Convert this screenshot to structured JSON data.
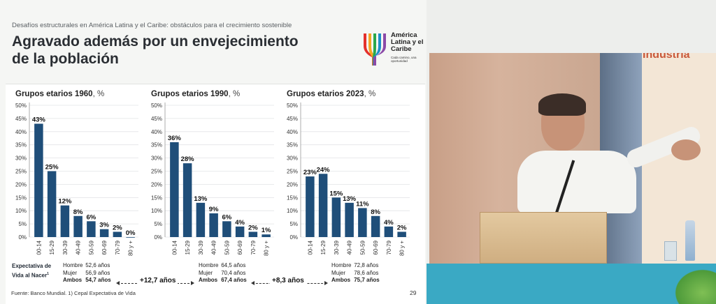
{
  "slide": {
    "supertitle": "Desafíos estructurales en América Latina y el Caribe: obstáculos para el crecimiento sostenible",
    "title": "Agravado además por un envejecimiento de la población",
    "logo": {
      "name": "América Latina y el Caribe",
      "tagline": "Cada camino, una oportunidad",
      "colors": [
        "#e4302b",
        "#f6a623",
        "#2ba84a",
        "#1d8fc9",
        "#8b4aa8"
      ]
    },
    "bar_color": "#1f4e79",
    "life_expectancy_label": "Expectativa de Vida al Nacer",
    "life_expectancy_footnote": "1",
    "stats": [
      {
        "hombre_label": "Hombre",
        "hombre": "52,6 años",
        "mujer_label": "Mujer",
        "mujer": "56,9 años",
        "ambos_label": "Ambos",
        "ambos": "54,7 años"
      },
      {
        "hombre_label": "Hombre",
        "hombre": "64,5 años",
        "mujer_label": "Mujer",
        "mujer": "70,4 años",
        "ambos_label": "Ambos",
        "ambos": "67,4 años"
      },
      {
        "hombre_label": "Hombre",
        "hombre": "72,8 años",
        "mujer_label": "Mujer",
        "mujer": "78,6 años",
        "ambos_label": "Ambos",
        "ambos": "75,7 años"
      }
    ],
    "diffs": [
      "+12,7 años",
      "+8,3 años"
    ],
    "source": "Fuente: Banco Mundial. 1) Cepal Expectativa de Vida",
    "page_number": "29"
  },
  "chart_data": [
    {
      "type": "bar",
      "title": "Grupos etarios 1960",
      "unit": ", %",
      "categories": [
        "00-14",
        "15-29",
        "30-39",
        "40-49",
        "50-59",
        "60-69",
        "70-79",
        "80 y +"
      ],
      "values": [
        43,
        25,
        12,
        8,
        6,
        3,
        2,
        0
      ],
      "value_labels": [
        "43%",
        "25%",
        "12%",
        "8%",
        "6%",
        "3%",
        "2%",
        "0%"
      ],
      "yticks": [
        "0%",
        "5%",
        "10%",
        "15%",
        "20%",
        "25%",
        "30%",
        "35%",
        "40%",
        "45%",
        "50%"
      ],
      "ylim": [
        0,
        50
      ],
      "grid": true
    },
    {
      "type": "bar",
      "title": "Grupos etarios 1990",
      "unit": ", %",
      "categories": [
        "00-14",
        "15-29",
        "30-39",
        "40-49",
        "50-59",
        "60-69",
        "70-79",
        "80 y +"
      ],
      "values": [
        36,
        28,
        13,
        9,
        6,
        4,
        2,
        1
      ],
      "value_labels": [
        "36%",
        "28%",
        "13%",
        "9%",
        "6%",
        "4%",
        "2%",
        "1%"
      ],
      "yticks": [
        "0%",
        "5%",
        "10%",
        "15%",
        "20%",
        "25%",
        "30%",
        "35%",
        "40%",
        "45%",
        "50%"
      ],
      "ylim": [
        0,
        50
      ],
      "grid": true
    },
    {
      "type": "bar",
      "title": "Grupos etarios 2023",
      "unit": ", %",
      "categories": [
        "00-14",
        "15-29",
        "30-39",
        "40-49",
        "50-59",
        "60-69",
        "70-79",
        "80 y +"
      ],
      "values": [
        23,
        24,
        15,
        13,
        11,
        8,
        4,
        2
      ],
      "value_labels": [
        "23%",
        "24%",
        "15%",
        "13%",
        "11%",
        "8%",
        "4%",
        "2%"
      ],
      "yticks": [
        "0%",
        "5%",
        "10%",
        "15%",
        "20%",
        "25%",
        "30%",
        "35%",
        "40%",
        "45%",
        "50%"
      ],
      "ylim": [
        0,
        50
      ],
      "grid": true
    }
  ],
  "video": {
    "screen_text": "Industria"
  }
}
